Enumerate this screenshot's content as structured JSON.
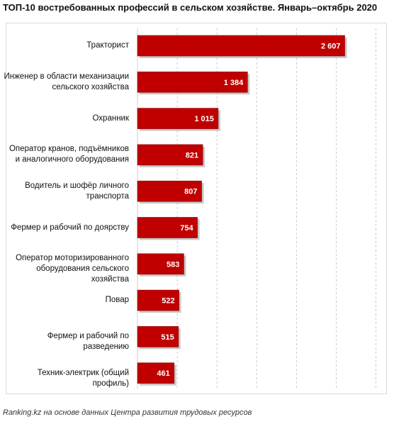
{
  "title": "ТОП-10 востребованных профессий в сельском хозяйстве. Январь–октябрь 2020",
  "footer": "Ranking.kz на основе данных Центра развития трудовых ресурсов",
  "colors": {
    "bar": "#c00000",
    "bar_edge": "#8b0000",
    "shadow": "#9a9a9a",
    "grid": "#bfbfbf"
  },
  "chart_data": {
    "type": "bar",
    "orientation": "horizontal",
    "title": "ТОП-10 востребованных профессий в сельском хозяйстве. Январь–октябрь 2020",
    "categories": [
      "Тракторист",
      "Инженер в области механизации сельского хозяйства",
      "Охранник",
      "Оператор кранов, подъёмников и аналогичного оборудования",
      "Водитель и шофёр личного транспорта",
      "Фермер и рабочий по доярству",
      "Оператор моторизированного оборудования сельского хозяйства",
      "Повар",
      "Фермер и рабочий по разведению",
      "Техник-электрик (общий профиль)"
    ],
    "category_lines": [
      [
        "Тракторист"
      ],
      [
        "Инженер в области механизации",
        "сельского хозяйства"
      ],
      [
        "Охранник"
      ],
      [
        "Оператор кранов, подъёмников",
        "и аналогичного оборудования"
      ],
      [
        "Водитель и шофёр личного",
        "транспорта"
      ],
      [
        "Фермер и рабочий по доярству"
      ],
      [
        "Оператор моторизированного",
        "оборудования сельского хозяйства"
      ],
      [
        "Повар"
      ],
      [
        "Фермер и рабочий по разведению"
      ],
      [
        "Техник-электрик (общий профиль)"
      ]
    ],
    "values": [
      2607,
      1384,
      1015,
      821,
      807,
      754,
      583,
      522,
      515,
      461
    ],
    "value_labels": [
      "2 607",
      "1 384",
      "1 015",
      "821",
      "807",
      "754",
      "583",
      "522",
      "515",
      "461"
    ],
    "xlim": [
      0,
      3000
    ],
    "gridlines": "vertical dashed",
    "legend": "none"
  }
}
